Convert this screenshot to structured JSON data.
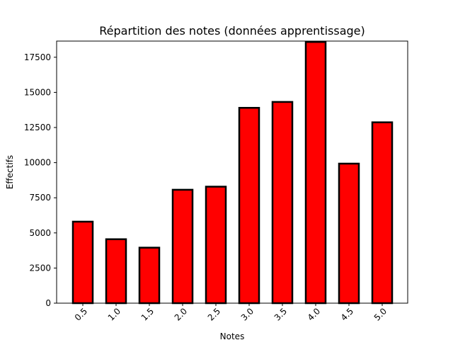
{
  "chart_data": {
    "type": "bar",
    "title": "Répartition des notes (données apprentissage)",
    "xlabel": "Notes",
    "ylabel": "Effectifs",
    "categories": [
      "0.5",
      "1.0",
      "1.5",
      "2.0",
      "2.5",
      "3.0",
      "3.5",
      "4.0",
      "4.5",
      "5.0"
    ],
    "values": [
      5800,
      4550,
      3950,
      8070,
      8290,
      13900,
      14320,
      18590,
      9930,
      12870
    ],
    "ylim": [
      0,
      18650
    ],
    "yticks": [
      "0",
      "2500",
      "5000",
      "7500",
      "10000",
      "12500",
      "15000",
      "17500"
    ],
    "bar_color": "#ff0000",
    "edge_color": "#000000",
    "grid": false,
    "xtick_rotation_deg": 45
  }
}
